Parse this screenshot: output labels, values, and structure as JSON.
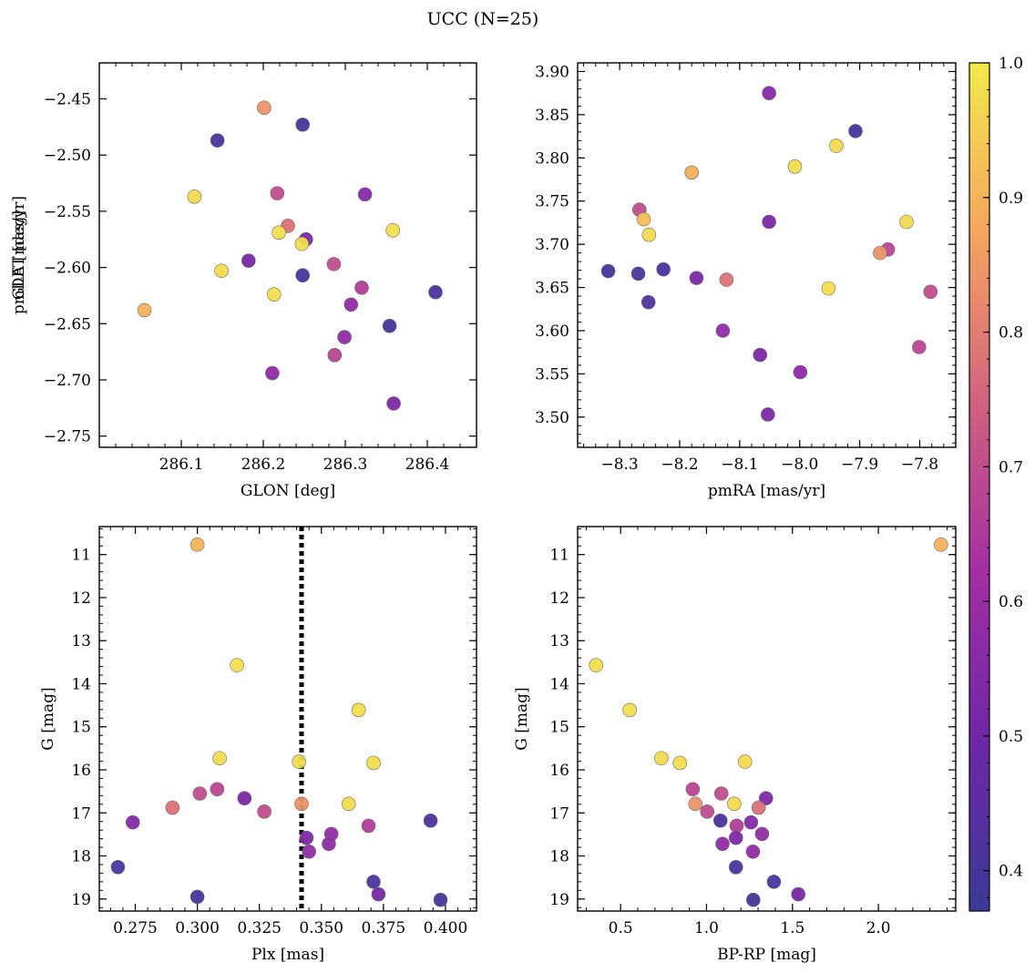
{
  "figure": {
    "title": "UCC (N=25)"
  },
  "colorbar": {
    "min": 0.37,
    "max": 1.0,
    "ticks": [
      0.4,
      0.5,
      0.6,
      0.7,
      0.8,
      0.9,
      1.0
    ],
    "tick_labels": [
      "0.4",
      "0.5",
      "0.6",
      "0.7",
      "0.8",
      "0.9",
      "1.0"
    ],
    "colormap": "plasma",
    "colormap_stops": [
      "#3b3a96",
      "#6d27a8",
      "#a32ea3",
      "#d2617f",
      "#f5a55f",
      "#f2e94a"
    ]
  },
  "chart_data": [
    {
      "type": "scatter",
      "title": "",
      "xlabel": "GLON [deg]",
      "ylabel": "GLAT [deg]",
      "xlim": [
        286.0,
        286.46
      ],
      "ylim": [
        -2.76,
        -2.418
      ],
      "y_inverted": false,
      "xticks": [
        286.1,
        286.2,
        286.3,
        286.4
      ],
      "xtick_labels": [
        "286.1",
        "286.2",
        "286.3",
        "286.4"
      ],
      "yticks": [
        -2.45,
        -2.5,
        -2.55,
        -2.6,
        -2.65,
        -2.7,
        -2.75
      ],
      "ytick_labels": [
        "−2.45",
        "−2.50",
        "−2.55",
        "−2.60",
        "−2.65",
        "−2.70",
        "−2.75"
      ],
      "points": [
        {
          "x": 286.201,
          "y": -2.458,
          "c": 0.84
        },
        {
          "x": 286.248,
          "y": -2.473,
          "c": 0.4
        },
        {
          "x": 286.144,
          "y": -2.487,
          "c": 0.41
        },
        {
          "x": 286.116,
          "y": -2.537,
          "c": 0.97
        },
        {
          "x": 286.217,
          "y": -2.534,
          "c": 0.7
        },
        {
          "x": 286.324,
          "y": -2.535,
          "c": 0.55
        },
        {
          "x": 286.23,
          "y": -2.563,
          "c": 0.78
        },
        {
          "x": 286.219,
          "y": -2.569,
          "c": 0.98
        },
        {
          "x": 286.252,
          "y": -2.575,
          "c": 0.53
        },
        {
          "x": 286.247,
          "y": -2.579,
          "c": 0.98
        },
        {
          "x": 286.358,
          "y": -2.567,
          "c": 0.98
        },
        {
          "x": 286.182,
          "y": -2.594,
          "c": 0.52
        },
        {
          "x": 286.149,
          "y": -2.603,
          "c": 0.97
        },
        {
          "x": 286.286,
          "y": -2.597,
          "c": 0.7
        },
        {
          "x": 286.248,
          "y": -2.607,
          "c": 0.41
        },
        {
          "x": 286.32,
          "y": -2.618,
          "c": 0.66
        },
        {
          "x": 286.213,
          "y": -2.624,
          "c": 0.98
        },
        {
          "x": 286.41,
          "y": -2.622,
          "c": 0.42
        },
        {
          "x": 286.307,
          "y": -2.633,
          "c": 0.58
        },
        {
          "x": 286.055,
          "y": -2.638,
          "c": 0.9
        },
        {
          "x": 286.354,
          "y": -2.652,
          "c": 0.4
        },
        {
          "x": 286.299,
          "y": -2.662,
          "c": 0.58
        },
        {
          "x": 286.287,
          "y": -2.678,
          "c": 0.68
        },
        {
          "x": 286.211,
          "y": -2.694,
          "c": 0.57
        },
        {
          "x": 286.359,
          "y": -2.721,
          "c": 0.53
        }
      ]
    },
    {
      "type": "scatter",
      "title": "",
      "xlabel": "pmRA [mas/yr]",
      "ylabel": "pmDE [mas/yr]",
      "xlim": [
        -8.37,
        -7.74
      ],
      "ylim": [
        3.465,
        3.91
      ],
      "y_inverted": false,
      "xticks": [
        -8.3,
        -8.2,
        -8.1,
        -8.0,
        -7.9,
        -7.8
      ],
      "xtick_labels": [
        "−8.3",
        "−8.2",
        "−8.1",
        "−8.0",
        "−7.9",
        "−7.8"
      ],
      "yticks": [
        3.5,
        3.55,
        3.6,
        3.65,
        3.7,
        3.75,
        3.8,
        3.85,
        3.9
      ],
      "ytick_labels": [
        "3.50",
        "3.55",
        "3.60",
        "3.65",
        "3.70",
        "3.75",
        "3.80",
        "3.85",
        "3.90"
      ],
      "points": [
        {
          "x": -8.051,
          "y": 3.875,
          "c": 0.55
        },
        {
          "x": -7.907,
          "y": 3.831,
          "c": 0.4
        },
        {
          "x": -7.939,
          "y": 3.814,
          "c": 0.97
        },
        {
          "x": -8.008,
          "y": 3.79,
          "c": 0.98
        },
        {
          "x": -8.18,
          "y": 3.783,
          "c": 0.89
        },
        {
          "x": -8.267,
          "y": 3.74,
          "c": 0.7
        },
        {
          "x": -8.26,
          "y": 3.729,
          "c": 0.92
        },
        {
          "x": -8.051,
          "y": 3.726,
          "c": 0.53
        },
        {
          "x": -7.822,
          "y": 3.726,
          "c": 0.97
        },
        {
          "x": -8.251,
          "y": 3.711,
          "c": 0.97
        },
        {
          "x": -7.853,
          "y": 3.694,
          "c": 0.68
        },
        {
          "x": -7.866,
          "y": 3.69,
          "c": 0.84
        },
        {
          "x": -8.319,
          "y": 3.669,
          "c": 0.4
        },
        {
          "x": -8.269,
          "y": 3.666,
          "c": 0.41
        },
        {
          "x": -8.227,
          "y": 3.671,
          "c": 0.41
        },
        {
          "x": -8.172,
          "y": 3.661,
          "c": 0.52
        },
        {
          "x": -8.122,
          "y": 3.659,
          "c": 0.78
        },
        {
          "x": -7.952,
          "y": 3.649,
          "c": 0.98
        },
        {
          "x": -7.782,
          "y": 3.645,
          "c": 0.7
        },
        {
          "x": -8.252,
          "y": 3.633,
          "c": 0.42
        },
        {
          "x": -8.128,
          "y": 3.6,
          "c": 0.58
        },
        {
          "x": -7.801,
          "y": 3.581,
          "c": 0.68
        },
        {
          "x": -8.066,
          "y": 3.572,
          "c": 0.53
        },
        {
          "x": -7.999,
          "y": 3.552,
          "c": 0.57
        },
        {
          "x": -8.053,
          "y": 3.503,
          "c": 0.53
        }
      ]
    },
    {
      "type": "scatter",
      "title": "",
      "xlabel": "Plx [mas]",
      "ylabel": "G [mag]",
      "xlim": [
        0.2605,
        0.4125
      ],
      "ylim": [
        10.35,
        19.28
      ],
      "y_inverted": true,
      "vline": {
        "x": 0.342,
        "style": "dotted"
      },
      "xticks": [
        0.275,
        0.3,
        0.325,
        0.35,
        0.375,
        0.4
      ],
      "xtick_labels": [
        "0.275",
        "0.300",
        "0.325",
        "0.350",
        "0.375",
        "0.400"
      ],
      "yticks": [
        11,
        12,
        13,
        14,
        15,
        16,
        17,
        18,
        19
      ],
      "ytick_labels": [
        "11",
        "12",
        "13",
        "14",
        "15",
        "16",
        "17",
        "18",
        "19"
      ],
      "points": [
        {
          "x": 0.3,
          "y": 10.77,
          "c": 0.9
        },
        {
          "x": 0.316,
          "y": 13.57,
          "c": 0.98
        },
        {
          "x": 0.365,
          "y": 14.61,
          "c": 0.98
        },
        {
          "x": 0.309,
          "y": 15.73,
          "c": 0.97
        },
        {
          "x": 0.341,
          "y": 15.81,
          "c": 0.97
        },
        {
          "x": 0.371,
          "y": 15.84,
          "c": 0.98
        },
        {
          "x": 0.308,
          "y": 16.45,
          "c": 0.68
        },
        {
          "x": 0.301,
          "y": 16.55,
          "c": 0.7
        },
        {
          "x": 0.319,
          "y": 16.66,
          "c": 0.53
        },
        {
          "x": 0.361,
          "y": 16.79,
          "c": 0.97
        },
        {
          "x": 0.342,
          "y": 16.79,
          "c": 0.84
        },
        {
          "x": 0.29,
          "y": 16.88,
          "c": 0.78
        },
        {
          "x": 0.327,
          "y": 16.97,
          "c": 0.7
        },
        {
          "x": 0.274,
          "y": 17.22,
          "c": 0.55
        },
        {
          "x": 0.369,
          "y": 17.3,
          "c": 0.66
        },
        {
          "x": 0.394,
          "y": 17.18,
          "c": 0.42
        },
        {
          "x": 0.344,
          "y": 17.58,
          "c": 0.53
        },
        {
          "x": 0.354,
          "y": 17.49,
          "c": 0.58
        },
        {
          "x": 0.353,
          "y": 17.72,
          "c": 0.57
        },
        {
          "x": 0.345,
          "y": 17.9,
          "c": 0.58
        },
        {
          "x": 0.268,
          "y": 18.26,
          "c": 0.41
        },
        {
          "x": 0.371,
          "y": 18.6,
          "c": 0.41
        },
        {
          "x": 0.373,
          "y": 18.89,
          "c": 0.52
        },
        {
          "x": 0.3,
          "y": 18.95,
          "c": 0.4
        },
        {
          "x": 0.398,
          "y": 19.02,
          "c": 0.4
        }
      ]
    },
    {
      "type": "scatter",
      "title": "",
      "xlabel": "BP-RP [mag]",
      "ylabel": "G [mag]",
      "xlim": [
        0.25,
        2.45
      ],
      "ylim": [
        10.35,
        19.28
      ],
      "y_inverted": true,
      "xticks": [
        0.5,
        1.0,
        1.5,
        2.0
      ],
      "xtick_labels": [
        "0.5",
        "1.0",
        "1.5",
        "2.0"
      ],
      "yticks": [
        11,
        12,
        13,
        14,
        15,
        16,
        17,
        18,
        19
      ],
      "ytick_labels": [
        "11",
        "12",
        "13",
        "14",
        "15",
        "16",
        "17",
        "18",
        "19"
      ],
      "points": [
        {
          "x": 2.364,
          "y": 10.77,
          "c": 0.9
        },
        {
          "x": 0.357,
          "y": 13.57,
          "c": 0.98
        },
        {
          "x": 0.553,
          "y": 14.61,
          "c": 0.98
        },
        {
          "x": 0.737,
          "y": 15.73,
          "c": 0.97
        },
        {
          "x": 0.845,
          "y": 15.84,
          "c": 0.98
        },
        {
          "x": 1.224,
          "y": 15.81,
          "c": 0.97
        },
        {
          "x": 0.92,
          "y": 16.45,
          "c": 0.68
        },
        {
          "x": 1.086,
          "y": 16.55,
          "c": 0.7
        },
        {
          "x": 1.346,
          "y": 16.66,
          "c": 0.53
        },
        {
          "x": 0.935,
          "y": 16.79,
          "c": 0.84
        },
        {
          "x": 1.161,
          "y": 16.79,
          "c": 0.97
        },
        {
          "x": 1.303,
          "y": 16.88,
          "c": 0.78
        },
        {
          "x": 1.004,
          "y": 16.97,
          "c": 0.7
        },
        {
          "x": 1.081,
          "y": 17.18,
          "c": 0.42
        },
        {
          "x": 1.259,
          "y": 17.22,
          "c": 0.55
        },
        {
          "x": 1.175,
          "y": 17.3,
          "c": 0.66
        },
        {
          "x": 1.323,
          "y": 17.49,
          "c": 0.58
        },
        {
          "x": 1.171,
          "y": 17.58,
          "c": 0.53
        },
        {
          "x": 1.093,
          "y": 17.72,
          "c": 0.57
        },
        {
          "x": 1.27,
          "y": 17.9,
          "c": 0.58
        },
        {
          "x": 1.171,
          "y": 18.26,
          "c": 0.41
        },
        {
          "x": 1.392,
          "y": 18.6,
          "c": 0.41
        },
        {
          "x": 1.534,
          "y": 18.89,
          "c": 0.52
        },
        {
          "x": 1.272,
          "y": 19.02,
          "c": 0.4
        }
      ]
    }
  ]
}
